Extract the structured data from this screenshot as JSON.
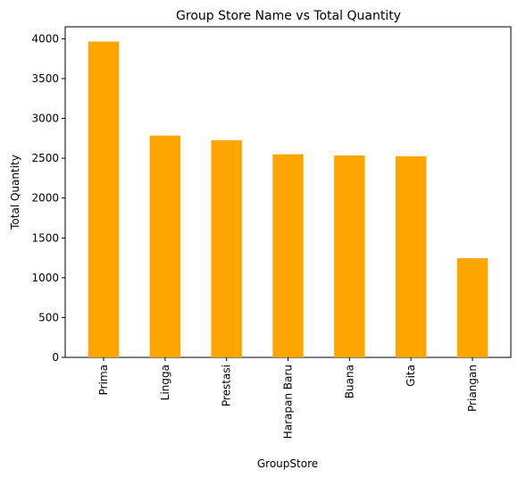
{
  "chart_data": {
    "type": "bar",
    "title": "Group Store Name vs Total Quantity",
    "xlabel": "GroupStore",
    "ylabel": "Total Quantity",
    "categories": [
      "Prima",
      "Lingga",
      "Prestasi",
      "Harapan Baru",
      "Buana",
      "Gita",
      "Priangan"
    ],
    "values": [
      3965,
      2785,
      2725,
      2550,
      2535,
      2525,
      1245
    ],
    "yticks": [
      0,
      500,
      1000,
      1500,
      2000,
      2500,
      3000,
      3500,
      4000
    ],
    "ylim": [
      0,
      4150
    ],
    "bar_color": "#ffa500",
    "grid": false,
    "legend": "none"
  }
}
